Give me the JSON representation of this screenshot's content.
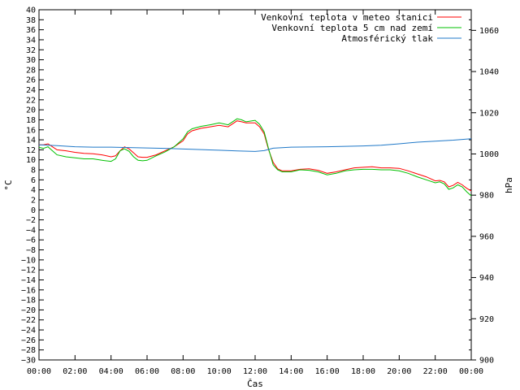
{
  "chart_data": {
    "type": "line",
    "title": "",
    "xlabel": "Čas",
    "ylabel": "°C",
    "y2label": "hPa",
    "xlim": [
      0,
      24
    ],
    "ylim": [
      -30,
      40
    ],
    "y2lim": [
      900,
      1070
    ],
    "grid": false,
    "legend_position": "top-right",
    "x_tick_labels": [
      "00:00",
      "02:00",
      "04:00",
      "06:00",
      "08:00",
      "10:00",
      "12:00",
      "14:00",
      "16:00",
      "18:00",
      "20:00",
      "22:00",
      "00:00"
    ],
    "y_tick_labels": [
      "40",
      "38",
      "36",
      "34",
      "32",
      "30",
      "28",
      "26",
      "24",
      "22",
      "20",
      "18",
      "16",
      "14",
      "12",
      "10",
      "8",
      "6",
      "4",
      "2",
      "0",
      "−2",
      "−4",
      "−6",
      "−8",
      "−10",
      "−12",
      "−14",
      "−16",
      "−18",
      "−20",
      "−22",
      "−24",
      "−26",
      "−28",
      "−30"
    ],
    "y2_tick_labels": [
      "1060",
      "1040",
      "1020",
      "1000",
      "980",
      "960",
      "940",
      "920",
      "900"
    ],
    "series": [
      {
        "name": "Venkovní teplota v meteo stanici",
        "color": "#ff0000",
        "axis": "left",
        "x": [
          0,
          0.25,
          0.5,
          0.75,
          1,
          1.5,
          2,
          2.5,
          3,
          3.5,
          4,
          4.25,
          4.5,
          4.75,
          5,
          5.25,
          5.5,
          5.75,
          6,
          6.5,
          7,
          7.5,
          8,
          8.25,
          8.5,
          9,
          9.5,
          10,
          10.5,
          11,
          11.25,
          11.5,
          12,
          12.25,
          12.5,
          12.75,
          13,
          13.25,
          13.5,
          14,
          14.5,
          15,
          15.5,
          16,
          16.5,
          17,
          17.5,
          18,
          18.5,
          19,
          19.5,
          20,
          20.5,
          21,
          21.5,
          22,
          22.25,
          22.5,
          22.75,
          23,
          23.25,
          23.5,
          23.75,
          24
        ],
        "y": [
          13,
          13,
          13.2,
          12.6,
          12,
          11.8,
          11.5,
          11.3,
          11.2,
          11,
          10.6,
          10.8,
          11.8,
          12.6,
          12.2,
          11.4,
          10.6,
          10.5,
          10.5,
          11,
          11.8,
          12.6,
          13.8,
          15.2,
          15.8,
          16.3,
          16.6,
          16.9,
          16.6,
          17.8,
          17.6,
          17.4,
          17.4,
          16.6,
          15.2,
          12,
          9.5,
          8.2,
          7.8,
          7.8,
          8.1,
          8.2,
          7.9,
          7.3,
          7.6,
          8,
          8.4,
          8.5,
          8.6,
          8.4,
          8.4,
          8.3,
          7.8,
          7.2,
          6.6,
          5.8,
          5.9,
          5.6,
          4.6,
          4.9,
          5.5,
          5,
          4.3,
          3.8
        ]
      },
      {
        "name": "Venkovní teplota 5 cm nad zemí",
        "color": "#00c000",
        "axis": "left",
        "x": [
          0,
          0.25,
          0.5,
          0.75,
          1,
          1.5,
          2,
          2.5,
          3,
          3.5,
          4,
          4.25,
          4.5,
          4.75,
          5,
          5.25,
          5.5,
          5.75,
          6,
          6.5,
          7,
          7.5,
          8,
          8.25,
          8.5,
          9,
          9.5,
          10,
          10.5,
          11,
          11.25,
          11.5,
          12,
          12.25,
          12.5,
          12.75,
          13,
          13.25,
          13.5,
          14,
          14.5,
          15,
          15.5,
          16,
          16.5,
          17,
          17.5,
          18,
          18.5,
          19,
          19.5,
          20,
          20.5,
          21,
          21.5,
          22,
          22.25,
          22.5,
          22.75,
          23,
          23.25,
          23.5,
          23.75,
          24
        ],
        "y": [
          12.5,
          12.3,
          12.6,
          11.8,
          11,
          10.6,
          10.4,
          10.2,
          10.2,
          9.9,
          9.7,
          10.2,
          11.8,
          12.2,
          11.7,
          10.6,
          9.9,
          9.8,
          9.9,
          10.8,
          11.6,
          12.6,
          14.2,
          15.6,
          16.2,
          16.7,
          17,
          17.4,
          17,
          18.2,
          18,
          17.6,
          17.9,
          17.1,
          15.6,
          12.2,
          9,
          8,
          7.6,
          7.6,
          8,
          7.9,
          7.6,
          7,
          7.3,
          7.8,
          8,
          8.1,
          8.1,
          8,
          8,
          7.8,
          7.3,
          6.6,
          6,
          5.4,
          5.6,
          5.2,
          4.1,
          4.4,
          5,
          4.6,
          3.6,
          2.8
        ]
      },
      {
        "name": "Atmosférický tlak",
        "color": "#1f78c8",
        "axis": "right",
        "x": [
          0,
          1,
          2,
          3,
          4,
          5,
          6,
          7,
          8,
          9,
          10,
          11,
          12,
          12.5,
          13,
          14,
          15,
          16,
          17,
          18,
          19,
          20,
          21,
          22,
          23,
          24
        ],
        "y": [
          1004.4,
          1004,
          1003.5,
          1003.3,
          1003.3,
          1003.1,
          1002.9,
          1002.7,
          1002.4,
          1002.1,
          1001.8,
          1001.5,
          1001.2,
          1001.6,
          1002.8,
          1003.3,
          1003.4,
          1003.5,
          1003.7,
          1003.9,
          1004.2,
          1004.9,
          1005.7,
          1006.2,
          1006.7,
          1007.4
        ]
      }
    ]
  }
}
